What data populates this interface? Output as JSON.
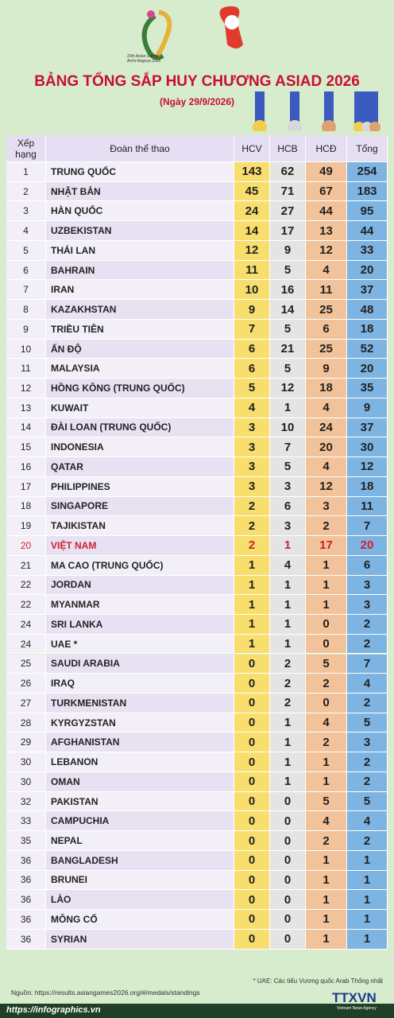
{
  "logo": {
    "lines": [
      "20th Asian Games",
      "Aichi-Nagoya 2026"
    ]
  },
  "header": {
    "title": "BẢNG TỔNG SẮP HUY CHƯƠNG ASIAD 2026",
    "subtitle": "(Ngày 29/9/2026)"
  },
  "table": {
    "columns": [
      "Xếp hạng",
      "Đoàn thể thao",
      "HCV",
      "HCB",
      "HCĐ",
      "Tổng"
    ],
    "highlight_rows": [
      19
    ],
    "rows": [
      [
        1,
        "TRUNG QUỐC",
        143,
        62,
        49,
        254
      ],
      [
        2,
        "NHẬT BẢN",
        45,
        71,
        67,
        183
      ],
      [
        3,
        "HÀN QUỐC",
        24,
        27,
        44,
        95
      ],
      [
        4,
        "UZBEKISTAN",
        14,
        17,
        13,
        44
      ],
      [
        5,
        "THÁI LAN",
        12,
        9,
        12,
        33
      ],
      [
        6,
        "BAHRAIN",
        11,
        5,
        4,
        20
      ],
      [
        7,
        "IRAN",
        10,
        16,
        11,
        37
      ],
      [
        8,
        "KAZAKHSTAN",
        9,
        14,
        25,
        48
      ],
      [
        9,
        "TRIỀU TIÊN",
        7,
        5,
        6,
        18
      ],
      [
        10,
        "ẤN ĐỘ",
        6,
        21,
        25,
        52
      ],
      [
        11,
        "MALAYSIA",
        6,
        5,
        9,
        20
      ],
      [
        12,
        "HỒNG KÔNG (TRUNG QUỐC)",
        5,
        12,
        18,
        35
      ],
      [
        13,
        "KUWAIT",
        4,
        1,
        4,
        9
      ],
      [
        14,
        "ĐÀI LOAN (TRUNG QUỐC)",
        3,
        10,
        24,
        37
      ],
      [
        15,
        "INDONESIA",
        3,
        7,
        20,
        30
      ],
      [
        16,
        "QATAR",
        3,
        5,
        4,
        12
      ],
      [
        17,
        "PHILIPPINES",
        3,
        3,
        12,
        18
      ],
      [
        18,
        "SINGAPORE",
        2,
        6,
        3,
        11
      ],
      [
        19,
        "TAJIKISTAN",
        2,
        3,
        2,
        7
      ],
      [
        20,
        "VIỆT NAM",
        2,
        1,
        17,
        20
      ],
      [
        21,
        "MA CAO (TRUNG QUỐC)",
        1,
        4,
        1,
        6
      ],
      [
        22,
        "JORDAN",
        1,
        1,
        1,
        3
      ],
      [
        22,
        "MYANMAR",
        1,
        1,
        1,
        3
      ],
      [
        24,
        "SRI LANKA",
        1,
        1,
        0,
        2
      ],
      [
        24,
        "UAE *",
        1,
        1,
        0,
        2
      ],
      [
        25,
        "SAUDI ARABIA",
        0,
        2,
        5,
        7
      ],
      [
        26,
        "IRAQ",
        0,
        2,
        2,
        4
      ],
      [
        27,
        "TURKMENISTAN",
        0,
        2,
        0,
        2
      ],
      [
        28,
        "KYRGYZSTAN",
        0,
        1,
        4,
        5
      ],
      [
        29,
        "AFGHANISTAN",
        0,
        1,
        2,
        3
      ],
      [
        30,
        "LEBANON",
        0,
        1,
        1,
        2
      ],
      [
        30,
        "OMAN",
        0,
        1,
        1,
        2
      ],
      [
        32,
        "PAKISTAN",
        0,
        0,
        5,
        5
      ],
      [
        33,
        "CAMPUCHIA",
        0,
        0,
        4,
        4
      ],
      [
        35,
        "NEPAL",
        0,
        0,
        2,
        2
      ],
      [
        36,
        "BANGLADESH",
        0,
        0,
        1,
        1
      ],
      [
        36,
        "BRUNEI",
        0,
        0,
        1,
        1
      ],
      [
        36,
        "LÀO",
        0,
        0,
        1,
        1
      ],
      [
        36,
        "MÔNG CỔ",
        0,
        0,
        1,
        1
      ],
      [
        36,
        "SYRIAN",
        0,
        0,
        1,
        1
      ]
    ]
  },
  "footer": {
    "note": "* UAE: Các tiểu Vương quốc Arab Thống nhất",
    "source": "Nguồn: https://results.asiangames2026.org/#/medals/standings",
    "site": "https://infographics.vn",
    "brand": "TTXVN",
    "brand_sub": "Vietnam News Agency"
  }
}
